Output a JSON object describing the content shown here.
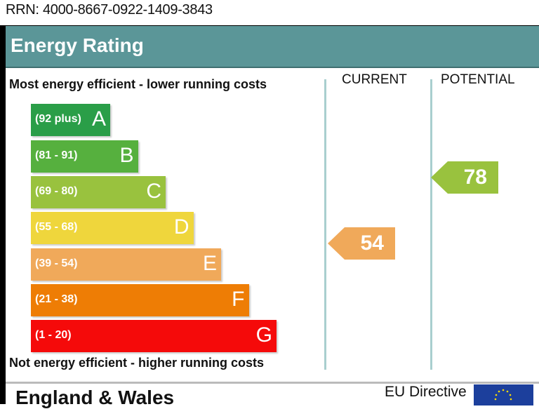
{
  "rrn": "RRN: 4000-8667-0922-1409-3843",
  "title": "Energy Rating",
  "top_note": "Most energy efficient - lower running costs",
  "bottom_note": "Not energy efficient - higher running costs",
  "footer": {
    "region": "England & Wales",
    "directive": "EU Directive",
    "flag_icon": "eu-flag-icon"
  },
  "chart_data": {
    "type": "bar",
    "columns": [
      "CURRENT",
      "POTENTIAL"
    ],
    "bands": [
      {
        "letter": "A",
        "range": "(92 plus)",
        "color": "#2a9e48"
      },
      {
        "letter": "B",
        "range": "(81 - 91)",
        "color": "#56b03e"
      },
      {
        "letter": "C",
        "range": "(69 - 80)",
        "color": "#99c23e"
      },
      {
        "letter": "D",
        "range": "(55 - 68)",
        "color": "#efd63c"
      },
      {
        "letter": "E",
        "range": "(39 - 54)",
        "color": "#f0a95a"
      },
      {
        "letter": "F",
        "range": "(21 - 38)",
        "color": "#ee7d05"
      },
      {
        "letter": "G",
        "range": "(1 - 20)",
        "color": "#f50a0a"
      }
    ],
    "current": {
      "value": "54",
      "band": "E",
      "color": "#f0a95a"
    },
    "potential": {
      "value": "78",
      "band": "C",
      "color": "#99c23e"
    }
  }
}
